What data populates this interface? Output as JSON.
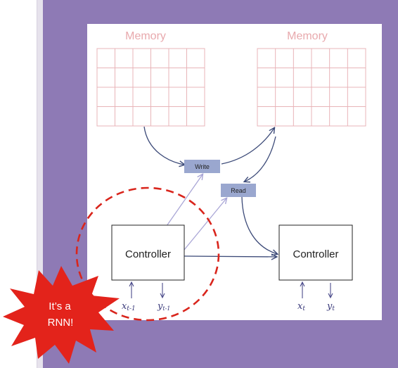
{
  "colors": {
    "panel": "#8e7ab5",
    "memory_grid": "#e8b4b8",
    "memory_title": "#e8a9ad",
    "arrow_dark": "#3c4a78",
    "arrow_light": "#a9a6d6",
    "op_box": "#9aa7cf",
    "dashed_circle": "#d9251c",
    "starburst": "#e3231b"
  },
  "memory": {
    "left_title": "Memory",
    "right_title": "Memory"
  },
  "ops": {
    "write_label": "Write",
    "read_label": "Read"
  },
  "controllers": {
    "left_label": "Controller",
    "right_label": "Controller"
  },
  "io": {
    "left_input": "x",
    "left_input_sub": "t-1",
    "left_output": "y",
    "left_output_sub": "t-1",
    "right_input": "x",
    "right_input_sub": "t",
    "right_output": "y",
    "right_output_sub": "t"
  },
  "callout": {
    "line1": "It’s a",
    "line2": "RNN!"
  }
}
